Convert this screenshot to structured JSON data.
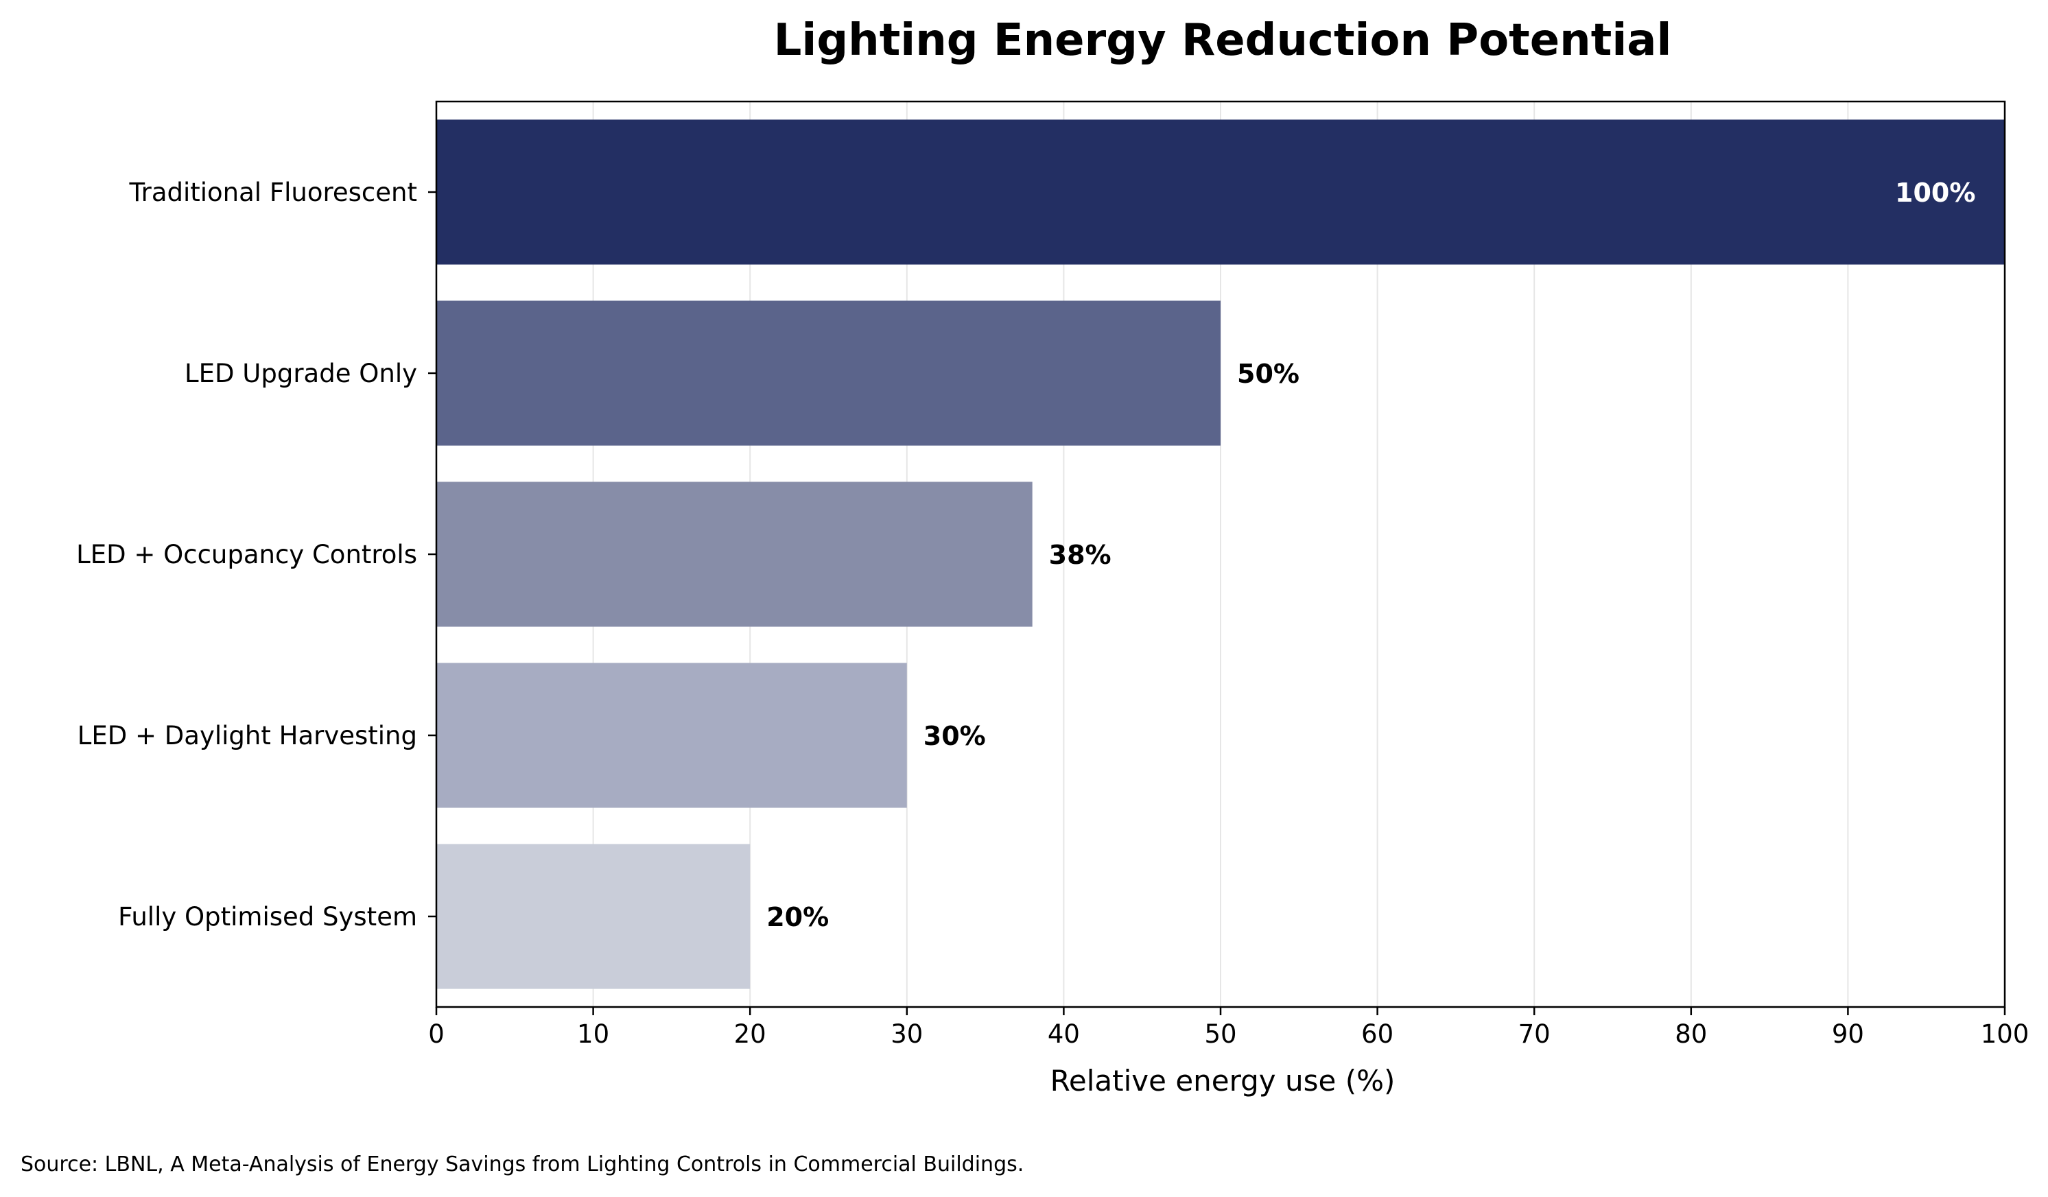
{
  "chart_data": {
    "type": "bar",
    "orientation": "horizontal",
    "title": "Lighting Energy Reduction Potential",
    "xlabel": "Relative energy use (%)",
    "ylabel": "",
    "xlim": [
      0,
      100
    ],
    "x_ticks": [
      0,
      10,
      20,
      30,
      40,
      50,
      60,
      70,
      80,
      90,
      100
    ],
    "grid": "vertical lines",
    "legend": "none",
    "categories": [
      "Traditional Fluorescent",
      "LED Upgrade Only",
      "LED + Occupancy Controls",
      "LED + Daylight Harvesting",
      "Fully Optimised System"
    ],
    "values": [
      100,
      50,
      38,
      30,
      20
    ],
    "value_labels": [
      "100%",
      "50%",
      "38%",
      "30%",
      "20%"
    ],
    "bar_colors": [
      "#232f63",
      "#5b648b",
      "#878da8",
      "#a7acc2",
      "#c9cdd9"
    ],
    "label_colors": [
      "#ffffff",
      "#000000",
      "#000000",
      "#000000",
      "#000000"
    ],
    "source": "Source: LBNL, A Meta-Analysis of Energy Savings from Lighting Controls in Commercial Buildings."
  }
}
